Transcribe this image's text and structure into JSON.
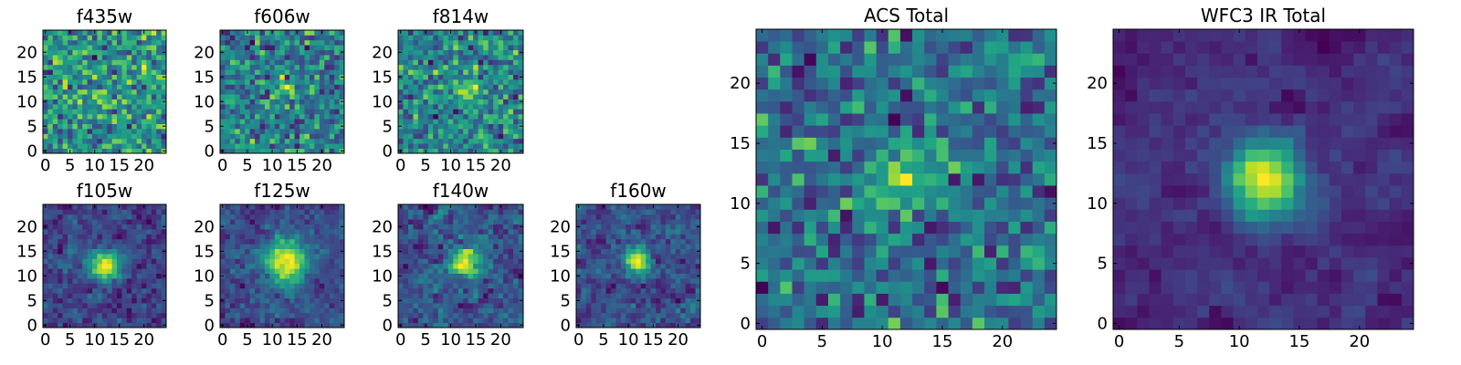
{
  "colormap": "viridis",
  "grid": false,
  "chart_data": [
    {
      "type": "heatmap",
      "title": "f435w",
      "grid_size": 25,
      "xlim": [
        0,
        24
      ],
      "ylim": [
        0,
        24
      ],
      "xticks": [
        "0",
        "5",
        "10",
        "15",
        "20"
      ],
      "yticks": [
        "0",
        "5",
        "10",
        "15",
        "20"
      ],
      "source_peak": [
        12,
        12
      ],
      "source_strength": 0.05,
      "source_sigma": 3.0,
      "noise": 0.55,
      "smoothing": 0.0,
      "seed": 435
    },
    {
      "type": "heatmap",
      "title": "f606w",
      "grid_size": 25,
      "xlim": [
        0,
        24
      ],
      "ylim": [
        0,
        24
      ],
      "xticks": [
        "0",
        "5",
        "10",
        "15",
        "20"
      ],
      "yticks": [
        "0",
        "5",
        "10",
        "15",
        "20"
      ],
      "source_peak": [
        12,
        13
      ],
      "source_strength": 0.35,
      "source_sigma": 1.8,
      "noise": 0.55,
      "smoothing": 0.0,
      "seed": 606
    },
    {
      "type": "heatmap",
      "title": "f814w",
      "grid_size": 25,
      "xlim": [
        0,
        24
      ],
      "ylim": [
        0,
        24
      ],
      "xticks": [
        "0",
        "5",
        "10",
        "15",
        "20"
      ],
      "yticks": [
        "0",
        "5",
        "10",
        "15",
        "20"
      ],
      "source_peak": [
        13,
        12
      ],
      "source_strength": 0.45,
      "source_sigma": 1.8,
      "noise": 0.55,
      "smoothing": 0.0,
      "seed": 814
    },
    {
      "type": "heatmap",
      "title": "f105w",
      "grid_size": 25,
      "xlim": [
        0,
        24
      ],
      "ylim": [
        0,
        24
      ],
      "xticks": [
        "0",
        "5",
        "10",
        "15",
        "20"
      ],
      "yticks": [
        "0",
        "5",
        "10",
        "15",
        "20"
      ],
      "source_peak": [
        12,
        12
      ],
      "source_strength": 0.9,
      "source_sigma": 2.2,
      "noise": 0.45,
      "smoothing": 0.5,
      "seed": 105
    },
    {
      "type": "heatmap",
      "title": "f125w",
      "grid_size": 25,
      "xlim": [
        0,
        24
      ],
      "ylim": [
        0,
        24
      ],
      "xticks": [
        "0",
        "5",
        "10",
        "15",
        "20"
      ],
      "yticks": [
        "0",
        "5",
        "10",
        "15",
        "20"
      ],
      "source_peak": [
        13,
        13
      ],
      "source_strength": 0.9,
      "source_sigma": 3.0,
      "noise": 0.45,
      "smoothing": 0.5,
      "seed": 125
    },
    {
      "type": "heatmap",
      "title": "f140w",
      "grid_size": 25,
      "xlim": [
        0,
        24
      ],
      "ylim": [
        0,
        24
      ],
      "xticks": [
        "0",
        "5",
        "10",
        "15",
        "20"
      ],
      "yticks": [
        "0",
        "5",
        "10",
        "15",
        "20"
      ],
      "source_peak": [
        13,
        13
      ],
      "source_strength": 0.8,
      "source_sigma": 2.0,
      "noise": 0.5,
      "smoothing": 0.45,
      "seed": 140
    },
    {
      "type": "heatmap",
      "title": "f160w",
      "grid_size": 25,
      "xlim": [
        0,
        24
      ],
      "ylim": [
        0,
        24
      ],
      "xticks": [
        "0",
        "5",
        "10",
        "15",
        "20"
      ],
      "yticks": [
        "0",
        "5",
        "10",
        "15",
        "20"
      ],
      "source_peak": [
        12,
        13
      ],
      "source_strength": 0.9,
      "source_sigma": 1.8,
      "noise": 0.5,
      "smoothing": 0.45,
      "seed": 160
    },
    {
      "type": "heatmap",
      "title": "ACS Total",
      "grid_size": 25,
      "xlim": [
        0,
        24
      ],
      "ylim": [
        0,
        24
      ],
      "xticks": [
        "0",
        "5",
        "10",
        "15",
        "20"
      ],
      "yticks": [
        "0",
        "5",
        "10",
        "15",
        "20"
      ],
      "source_peak": [
        12,
        12
      ],
      "source_strength": 0.35,
      "source_sigma": 2.2,
      "noise": 0.5,
      "smoothing": 0.0,
      "seed": 999
    },
    {
      "type": "heatmap",
      "title": "WFC3 IR Total",
      "grid_size": 25,
      "xlim": [
        0,
        24
      ],
      "ylim": [
        0,
        24
      ],
      "xticks": [
        "0",
        "5",
        "10",
        "15",
        "20"
      ],
      "yticks": [
        "0",
        "5",
        "10",
        "15",
        "20"
      ],
      "source_peak": [
        12,
        12
      ],
      "source_strength": 1.2,
      "source_sigma": 2.2,
      "noise": 0.35,
      "smoothing": 0.6,
      "seed": 777
    }
  ]
}
